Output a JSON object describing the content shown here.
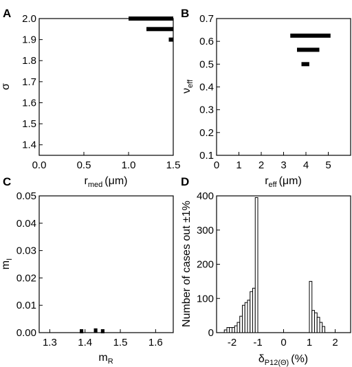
{
  "chart_data": [
    {
      "panel": "A",
      "type": "bar",
      "orientation": "horizontal-range",
      "xlabel_main": "r",
      "xlabel_sub": "med",
      "xlabel_unit": "(μm)",
      "ylabel": "σ",
      "xlim": [
        0,
        1.5
      ],
      "ylim": [
        1.35,
        2.0
      ],
      "xticks": [
        "0.0",
        "0.5",
        "1.0",
        "1.5"
      ],
      "yticks": [
        "1.4",
        "1.5",
        "1.6",
        "1.7",
        "1.8",
        "1.9",
        "2.0"
      ],
      "bars": [
        {
          "y": 2.0,
          "x_from": 1.0,
          "x_to": 1.5
        },
        {
          "y": 1.95,
          "x_from": 1.2,
          "x_to": 1.5
        },
        {
          "y": 1.9,
          "x_from": 1.45,
          "x_to": 1.5
        }
      ]
    },
    {
      "panel": "B",
      "type": "bar",
      "orientation": "horizontal-range",
      "xlabel_main": "r",
      "xlabel_sub": "eff",
      "xlabel_unit": "(μm)",
      "ylabel_main": "ν",
      "ylabel_sub": "eff",
      "xlim": [
        0,
        6
      ],
      "ylim": [
        0.1,
        0.7
      ],
      "xticks": [
        "0",
        "1",
        "2",
        "3",
        "4",
        "5"
      ],
      "yticks": [
        "0.1",
        "0.2",
        "0.3",
        "0.4",
        "0.5",
        "0.6",
        "0.7"
      ],
      "bars": [
        {
          "y": 0.625,
          "x_from": 3.3,
          "x_to": 5.1
        },
        {
          "y": 0.563,
          "x_from": 3.6,
          "x_to": 4.6
        },
        {
          "y": 0.5,
          "x_from": 3.8,
          "x_to": 4.15
        }
      ]
    },
    {
      "panel": "C",
      "type": "bar",
      "orientation": "horizontal-range",
      "xlabel_main": "m",
      "xlabel_sub": "R",
      "ylabel_main": "m",
      "ylabel_sub": "I",
      "xlim": [
        1.27,
        1.65
      ],
      "ylim": [
        0,
        0.05
      ],
      "xticks": [
        "1.3",
        "1.4",
        "1.5",
        "1.6"
      ],
      "yticks": [
        "0.00",
        "0.01",
        "0.02",
        "0.03",
        "0.04",
        "0.05"
      ],
      "bars": [
        {
          "y": 0.0005,
          "x_from": 1.385,
          "x_to": 1.395
        },
        {
          "y": 0.0008,
          "x_from": 1.425,
          "x_to": 1.435
        },
        {
          "y": 0.0005,
          "x_from": 1.445,
          "x_to": 1.455
        }
      ]
    },
    {
      "panel": "D",
      "type": "bar",
      "orientation": "histogram",
      "xlabel_main": "δ",
      "xlabel_sub": "P12(Θ)",
      "xlabel_unit": "(%)",
      "ylabel": "Number of cases out ±1%",
      "xlim": [
        -2.6,
        2.6
      ],
      "ylim": [
        0,
        400
      ],
      "xticks": [
        "-2",
        "-1",
        "0",
        "1",
        "2"
      ],
      "yticks": [
        "0",
        "100",
        "200",
        "300",
        "400"
      ],
      "bin_width": 0.1,
      "bins": [
        {
          "x": -2.3,
          "count": 8
        },
        {
          "x": -2.2,
          "count": 15
        },
        {
          "x": -2.1,
          "count": 15
        },
        {
          "x": -2.0,
          "count": 15
        },
        {
          "x": -1.9,
          "count": 20
        },
        {
          "x": -1.8,
          "count": 30
        },
        {
          "x": -1.7,
          "count": 48
        },
        {
          "x": -1.6,
          "count": 80
        },
        {
          "x": -1.5,
          "count": 88
        },
        {
          "x": -1.4,
          "count": 95
        },
        {
          "x": -1.3,
          "count": 120
        },
        {
          "x": -1.2,
          "count": 130
        },
        {
          "x": -1.1,
          "count": 395
        },
        {
          "x": 1.0,
          "count": 150
        },
        {
          "x": 1.1,
          "count": 65
        },
        {
          "x": 1.2,
          "count": 58
        },
        {
          "x": 1.3,
          "count": 45
        },
        {
          "x": 1.4,
          "count": 30
        },
        {
          "x": 1.5,
          "count": 18
        }
      ]
    }
  ]
}
